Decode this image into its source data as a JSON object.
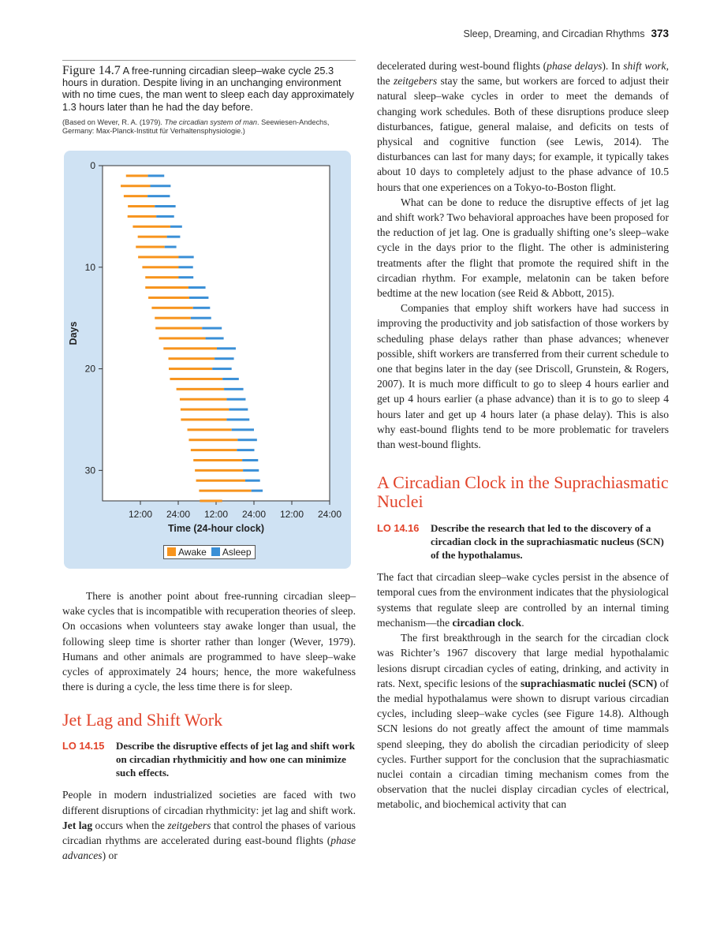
{
  "running_head": {
    "title": "Sleep, Dreaming, and Circadian Rhythms",
    "page": "373"
  },
  "figure": {
    "label": "Figure 14.7",
    "caption": "A free-running circadian sleep–wake cycle 25.3 hours in duration. Despite living in an unchanging environment with no time cues, the man went to sleep each day approximately 1.3 hours later than he had the day before.",
    "source_prefix": "(Based on Wever, R. A. (1979). ",
    "source_title": "The circadian system of man",
    "source_suffix": ". Seewiesen-Andechs, Germany: Max-Planck-Institut für Verhaltensphysiologie.)"
  },
  "chart_data": {
    "type": "bar",
    "subtype": "horizontal-range (actogram)",
    "ylabel": "Days",
    "xlabel": "Time (24-hour clock)",
    "x_ticks": [
      "12:00",
      "24:00",
      "12:00",
      "24:00",
      "12:00",
      "24:00"
    ],
    "y_ticks": [
      "0",
      "10",
      "20",
      "30"
    ],
    "x_range_hours": [
      0,
      60
    ],
    "y_range_days": [
      0,
      33
    ],
    "legend": [
      "Awake",
      "Asleep"
    ],
    "colors": {
      "awake": "#f7941d",
      "asleep": "#3a8fd6"
    },
    "series": [
      {
        "name": "Awake",
        "day": [
          1,
          2,
          3,
          4,
          5,
          6,
          7,
          8,
          9,
          10,
          11,
          12,
          13,
          14,
          15,
          16,
          17,
          18,
          19,
          20,
          21,
          22,
          23,
          24,
          25,
          26,
          27,
          28,
          29,
          30,
          31,
          32,
          33
        ],
        "start_hour": [
          6.2,
          4.8,
          5.6,
          6.7,
          6.6,
          8.0,
          9.3,
          8.8,
          9.4,
          10.5,
          11.3,
          11.3,
          12.1,
          13.0,
          13.8,
          14.0,
          14.9,
          16.1,
          17.4,
          17.5,
          17.8,
          19.5,
          20.4,
          20.6,
          20.7,
          22.4,
          22.8,
          23.3,
          24.0,
          24.4,
          24.7,
          25.5,
          25.7
        ],
        "end_hour": [
          12.0,
          12.6,
          11.9,
          13.8,
          14.2,
          17.9,
          17.0,
          16.4,
          20.1,
          20.1,
          20.1,
          22.7,
          22.9,
          23.9,
          23.3,
          26.3,
          27.2,
          30.2,
          29.6,
          29.0,
          31.7,
          32.1,
          32.8,
          33.4,
          32.8,
          34.1,
          35.7,
          35.5,
          36.9,
          37.1,
          37.7,
          39.3,
          31.6
        ],
        "asleep_end_hour": [
          16.3,
          18.0,
          17.8,
          19.3,
          18.9,
          21.0,
          20.5,
          19.5,
          24.1,
          23.9,
          24.0,
          27.2,
          28.0,
          28.4,
          28.7,
          31.5,
          32.0,
          35.2,
          34.7,
          34.1,
          36.0,
          37.2,
          37.8,
          38.4,
          38.8,
          40.0,
          40.8,
          40.1,
          41.1,
          41.3,
          41.6,
          42.3,
          null
        ]
      }
    ]
  },
  "left_text": {
    "para1": "There is another point about free-running circadian sleep–wake cycles that is incompatible with recuperation theories of sleep. On occasions when volunteers stay awake longer than usual, the following sleep time is shorter rather than longer (Wever, 1979). Humans and other animals are programmed to have sleep–wake cycles of approximately 24 hours; hence, the more wakefulness there is during a cycle, the less time there is for sleep.",
    "heading": "Jet Lag and Shift Work",
    "lo_tag": "LO 14.15",
    "lo_text": "Describe the disruptive effects of jet lag and shift work on circadian rhythmicitiy and how one can minimize such effects.",
    "para2_a": "People in modern industrialized societies are faced with two different disruptions of circadian rhythmicity: jet lag and shift work. ",
    "para2_term": "Jet lag",
    "para2_b": " occurs when the ",
    "para2_it1": "zeitgebers",
    "para2_c": " that control the phases of various circadian rhythms are accelerated during east-bound flights (",
    "para2_it2": "phase advances",
    "para2_d": ") or"
  },
  "right_text": {
    "p1_a": "decelerated during west-bound flights (",
    "p1_it1": "phase delays",
    "p1_b": "). In ",
    "p1_it2": "shift work",
    "p1_c": ", the ",
    "p1_it3": "zeitgebers",
    "p1_d": " stay the same, but workers are forced to adjust their natural sleep–wake cycles in order to meet the demands of changing work schedules. Both of these disruptions produce sleep disturbances, fatigue, general malaise, and deficits on tests of physical and cognitive function (see Lewis, 2014). The disturbances can last for many days; for example, it typically takes about 10 days to completely adjust to the phase advance of 10.5 hours that one experiences on a Tokyo-to-Boston flight.",
    "p2": "What can be done to reduce the disruptive effects of jet lag and shift work? Two behavioral approaches have been proposed for the reduction of jet lag. One is gradually shifting one’s sleep–wake cycle in the days prior to the flight. The other is administering treatments after the flight that promote the required shift in the circadian rhythm. For example, melatonin can be taken before bedtime at the new location (see Reid & Abbott, 2015).",
    "p3": "Companies that employ shift workers have had success in improving the productivity and job satisfaction of those workers by scheduling phase delays rather than phase advances; whenever possible, shift workers are transferred from their current schedule to one that begins later in the day (see Driscoll, Grunstein, & Rogers, 2007). It is much more difficult to go to sleep 4 hours earlier and get up 4 hours earlier (a phase advance) than it is to go to sleep 4 hours later and get up 4 hours later (a phase delay). This is also why east-bound flights tend to be more problematic for travelers than west-bound flights.",
    "heading": "A Circadian Clock in the Suprachiasmatic Nuclei",
    "lo_tag": "LO 14.16",
    "lo_text": "Describe the research that led to the discovery of a circadian clock in the suprachiasmatic nucleus (SCN) of the hypothalamus.",
    "p4_a": "The fact that circadian sleep–wake cycles persist in the absence of temporal cues from the environment indicates that the physiological systems that regulate sleep are controlled by an internal timing mechanism—the ",
    "p4_term": "circadian clock",
    "p4_b": ".",
    "p5_a": "The first breakthrough in the search for the circadian clock was Richter’s 1967 discovery that large medial hypothalamic lesions disrupt circadian cycles of eating, drinking, and activity in rats. Next, specific lesions of the ",
    "p5_term": "suprachiasmatic nuclei (SCN)",
    "p5_b": " of the medial hypothalamus were shown to disrupt various circadian cycles, including sleep–wake cycles (see Figure 14.8). Although SCN lesions do not greatly affect the amount of time mammals spend sleeping, they do abolish the circadian periodicity of sleep cycles. Further support for the conclusion that the suprachiasmatic nuclei contain a circadian timing mechanism comes from the observation that the nuclei display circadian cycles of electrical, metabolic, and biochemical activity that can"
  }
}
